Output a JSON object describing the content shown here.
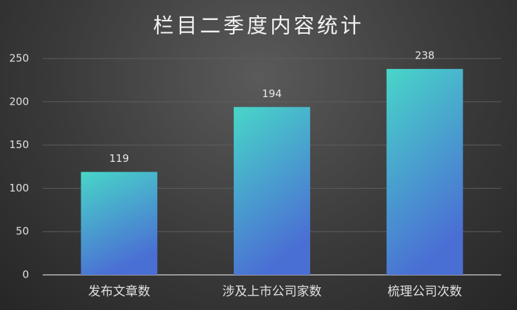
{
  "chart_data": {
    "type": "bar",
    "title": "栏目二季度内容统计",
    "categories": [
      "发布文章数",
      "涉及上市公司家数",
      "梳理公司次数"
    ],
    "values": [
      119,
      194,
      238
    ],
    "gradient": [
      "#48d6c8",
      "#4a6fd4"
    ],
    "ylim": [
      0,
      250
    ],
    "yticks": [
      0,
      50,
      100,
      150,
      200,
      250
    ],
    "grid": true
  }
}
